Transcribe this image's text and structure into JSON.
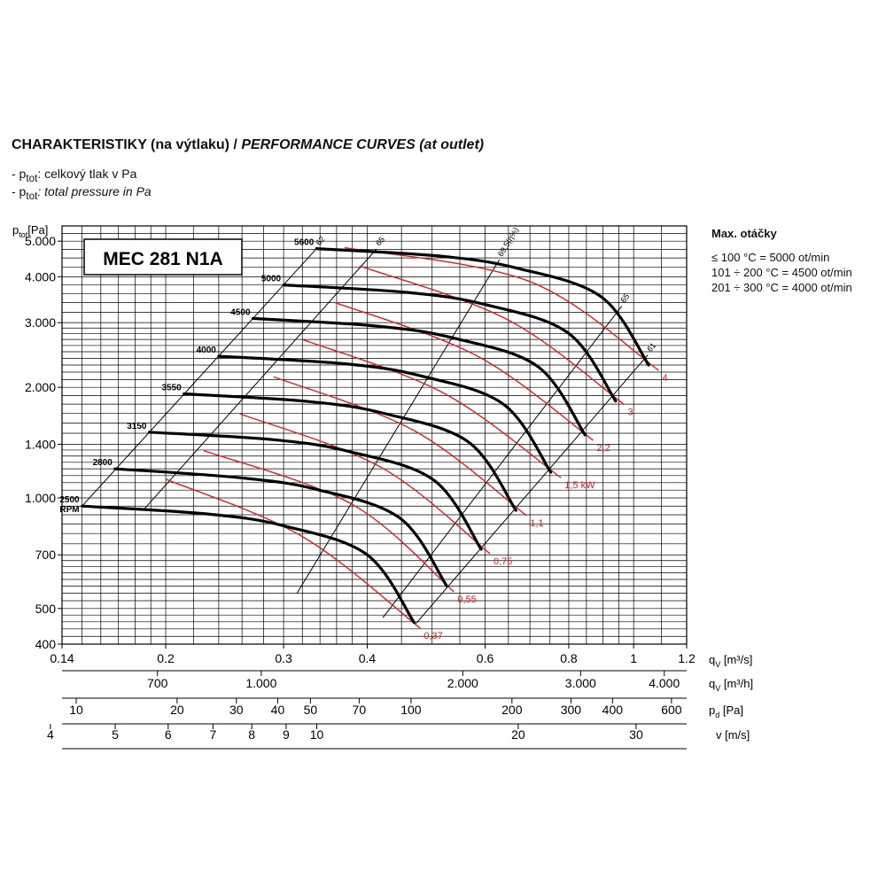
{
  "header": {
    "title_cz": "CHARAKTERISTIKY (na výtlaku) /",
    "title_en": "PERFORMANCE CURVES (at outlet)",
    "line1_prefix": "- p",
    "line1_sub": "tot",
    "line1_text": ": celkový tlak v Pa",
    "line2_prefix": "- p",
    "line2_sub": "tot",
    "line2_text": ": total pressure in Pa"
  },
  "max_rpm": {
    "title": "Max. otáčky",
    "rows": [
      "≤ 100 °C = 5000 ot/min",
      "101 ÷ 200 °C = 4500 ot/min",
      "201 ÷ 300 °C = 4000 ot/min"
    ]
  },
  "chart_data": {
    "type": "line",
    "model_label": "MEC 281 N1A",
    "y_axis": {
      "label": "p",
      "label_sub": "tot",
      "label_unit": "[Pa]",
      "scale": "log",
      "range": [
        400,
        5500
      ],
      "ticks": [
        {
          "v": 400,
          "t": "400"
        },
        {
          "v": 500,
          "t": "500"
        },
        {
          "v": 700,
          "t": "700"
        },
        {
          "v": 1000,
          "t": "1.000"
        },
        {
          "v": 1400,
          "t": "1.400"
        },
        {
          "v": 2000,
          "t": "2.000"
        },
        {
          "v": 3000,
          "t": "3.000"
        },
        {
          "v": 4000,
          "t": "4.000"
        },
        {
          "v": 5000,
          "t": "5.000"
        }
      ]
    },
    "x_axis": {
      "label": "q",
      "label_sub": "V",
      "label_unit": "[m³/s]",
      "scale": "log",
      "range": [
        0.14,
        1.2
      ],
      "ticks": [
        {
          "v": 0.14,
          "t": "0.14"
        },
        {
          "v": 0.2,
          "t": "0.2"
        },
        {
          "v": 0.3,
          "t": "0.3"
        },
        {
          "v": 0.4,
          "t": "0.4"
        },
        {
          "v": 0.6,
          "t": "0.6"
        },
        {
          "v": 0.8,
          "t": "0.8"
        },
        {
          "v": 1.0,
          "t": "1"
        },
        {
          "v": 1.2,
          "t": "1.2"
        }
      ]
    },
    "secondary_axes": [
      {
        "label": "q",
        "label_sub": "V",
        "unit": "[m³/h]",
        "ticks": [
          {
            "v": 0.1944,
            "t": "700"
          },
          {
            "v": 0.2778,
            "t": "1.000"
          },
          {
            "v": 0.5556,
            "t": "2.000"
          },
          {
            "v": 0.8333,
            "t": "3.000"
          },
          {
            "v": 1.1111,
            "t": "4.000"
          }
        ]
      },
      {
        "label": "p",
        "label_sub": "d",
        "unit": "[Pa]",
        "ticks": [
          {
            "v": 0.147,
            "t": "10"
          },
          {
            "v": 0.208,
            "t": "20"
          },
          {
            "v": 0.255,
            "t": "30"
          },
          {
            "v": 0.294,
            "t": "40"
          },
          {
            "v": 0.329,
            "t": "50"
          },
          {
            "v": 0.389,
            "t": "70"
          },
          {
            "v": 0.465,
            "t": "100"
          },
          {
            "v": 0.658,
            "t": "200"
          },
          {
            "v": 0.806,
            "t": "300"
          },
          {
            "v": 0.93,
            "t": "400"
          },
          {
            "v": 1.139,
            "t": "600"
          }
        ]
      },
      {
        "label": "v",
        "label_sub": "",
        "unit": "[m/s]",
        "ticks": [
          {
            "v": 0.1345,
            "t": "4"
          },
          {
            "v": 0.1681,
            "t": "5"
          },
          {
            "v": 0.2017,
            "t": "6"
          },
          {
            "v": 0.2353,
            "t": "7"
          },
          {
            "v": 0.2689,
            "t": "8"
          },
          {
            "v": 0.3026,
            "t": "9"
          },
          {
            "v": 0.3362,
            "t": "10"
          },
          {
            "v": 0.6723,
            "t": "20"
          },
          {
            "v": 1.0085,
            "t": "30"
          }
        ]
      }
    ],
    "speed_curves": [
      {
        "rpm": "2500",
        "extra": "RPM",
        "points": [
          [
            0.15,
            950
          ],
          [
            0.23,
            905
          ],
          [
            0.3,
            840
          ],
          [
            0.4,
            700
          ],
          [
            0.47,
            458
          ]
        ]
      },
      {
        "rpm": "2800",
        "points": [
          [
            0.168,
            1200
          ],
          [
            0.258,
            1135
          ],
          [
            0.336,
            1055
          ],
          [
            0.448,
            880
          ],
          [
            0.526,
            575
          ]
        ]
      },
      {
        "rpm": "3150",
        "points": [
          [
            0.189,
            1510
          ],
          [
            0.29,
            1440
          ],
          [
            0.378,
            1335
          ],
          [
            0.504,
            1115
          ],
          [
            0.592,
            725
          ]
        ]
      },
      {
        "rpm": "3550",
        "points": [
          [
            0.213,
            1920
          ],
          [
            0.327,
            1830
          ],
          [
            0.426,
            1695
          ],
          [
            0.568,
            1415
          ],
          [
            0.667,
            925
          ]
        ]
      },
      {
        "rpm": "4000",
        "points": [
          [
            0.24,
            2430
          ],
          [
            0.368,
            2320
          ],
          [
            0.48,
            2150
          ],
          [
            0.64,
            1795
          ],
          [
            0.752,
            1175
          ]
        ]
      },
      {
        "rpm": "4500",
        "points": [
          [
            0.27,
            3080
          ],
          [
            0.414,
            2935
          ],
          [
            0.54,
            2720
          ],
          [
            0.72,
            2275
          ],
          [
            0.846,
            1485
          ]
        ]
      },
      {
        "rpm": "5000",
        "points": [
          [
            0.3,
            3800
          ],
          [
            0.46,
            3625
          ],
          [
            0.6,
            3360
          ],
          [
            0.8,
            2805
          ],
          [
            0.94,
            1835
          ]
        ]
      },
      {
        "rpm": "5600",
        "points": [
          [
            0.336,
            4770
          ],
          [
            0.515,
            4550
          ],
          [
            0.672,
            4215
          ],
          [
            0.896,
            3520
          ],
          [
            1.053,
            2300
          ]
        ]
      }
    ],
    "efficiency_lines": [
      {
        "label": "62",
        "points": [
          [
            0.15,
            950
          ],
          [
            0.336,
            4770
          ]
        ]
      },
      {
        "label": "65",
        "points": [
          [
            0.186,
            935
          ],
          [
            0.413,
            4760
          ]
        ]
      },
      {
        "label": "69,5(η%)",
        "points": [
          [
            0.314,
            550
          ],
          [
            0.63,
            4450
          ]
        ]
      },
      {
        "label": "65",
        "points": [
          [
            0.422,
            472
          ],
          [
            0.96,
            3330
          ]
        ]
      },
      {
        "label": "61",
        "points": [
          [
            0.473,
            455
          ],
          [
            1.05,
            2450
          ]
        ]
      }
    ],
    "power_lines": [
      {
        "label": "0,37",
        "points": [
          [
            0.2,
            1125
          ],
          [
            0.32,
            785
          ],
          [
            0.48,
            442
          ]
        ]
      },
      {
        "label": "0,55",
        "points": [
          [
            0.228,
            1345
          ],
          [
            0.38,
            960
          ],
          [
            0.539,
            555
          ]
        ]
      },
      {
        "label": "0,75",
        "points": [
          [
            0.258,
            1695
          ],
          [
            0.42,
            1210
          ],
          [
            0.61,
            705
          ]
        ]
      },
      {
        "label": "1,1",
        "points": [
          [
            0.29,
            2135
          ],
          [
            0.47,
            1525
          ],
          [
            0.692,
            895
          ]
        ]
      },
      {
        "label": "1,5 kW",
        "points": [
          [
            0.32,
            2700
          ],
          [
            0.52,
            1930
          ],
          [
            0.779,
            1135
          ]
        ]
      },
      {
        "label": "2,2",
        "points": [
          [
            0.357,
            3410
          ],
          [
            0.585,
            2430
          ],
          [
            0.87,
            1435
          ]
        ]
      },
      {
        "label": "3",
        "points": [
          [
            0.39,
            4280
          ],
          [
            0.65,
            3050
          ],
          [
            0.968,
            1795
          ]
        ]
      },
      {
        "label": "4",
        "points": [
          [
            0.37,
            4800
          ],
          [
            0.7,
            3880
          ],
          [
            1.09,
            2225
          ]
        ]
      }
    ]
  }
}
